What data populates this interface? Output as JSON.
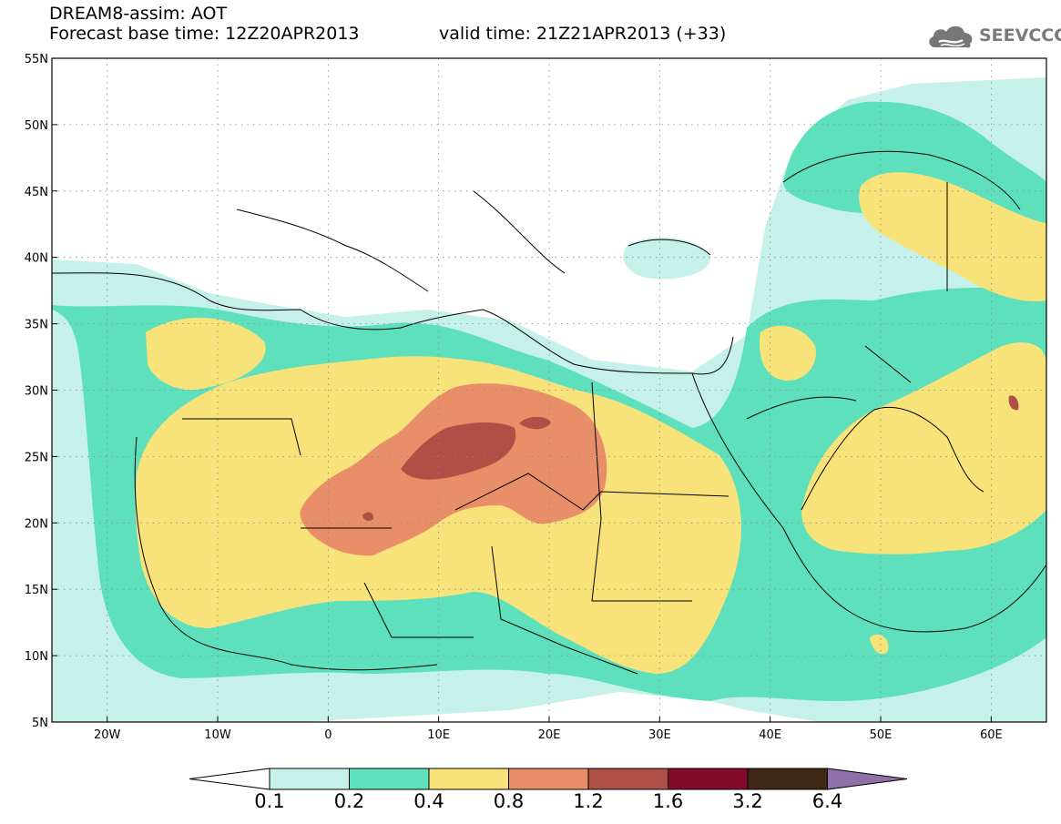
{
  "header": {
    "title_line1": "DREAM8-assim: AOT",
    "title_line2_base": "Forecast base time: 12Z20APR2013",
    "title_line2_valid": "valid time: 21Z21APR2013 (+33)",
    "logo_text": "SEEVCCC",
    "logo_icon": "cloud-icon"
  },
  "map": {
    "lon_range": [
      -25,
      65
    ],
    "lat_range": [
      5,
      55
    ],
    "lat_labels": [
      "55N",
      "50N",
      "45N",
      "40N",
      "35N",
      "30N",
      "25N",
      "20N",
      "15N",
      "10N",
      "5N"
    ],
    "lon_labels": [
      "20W",
      "10W",
      "0",
      "10E",
      "20E",
      "30E",
      "40E",
      "50E",
      "60E"
    ],
    "gridlines": true
  },
  "colorbar": {
    "levels": [
      "0.1",
      "0.2",
      "0.4",
      "0.8",
      "1.2",
      "1.6",
      "3.2",
      "6.4"
    ],
    "colors": [
      "#ffffff",
      "#c6f1ea",
      "#5ee0bd",
      "#f8e27a",
      "#e88f6a",
      "#b04f45",
      "#830a2a",
      "#3f2715",
      "#9070a8"
    ]
  }
}
